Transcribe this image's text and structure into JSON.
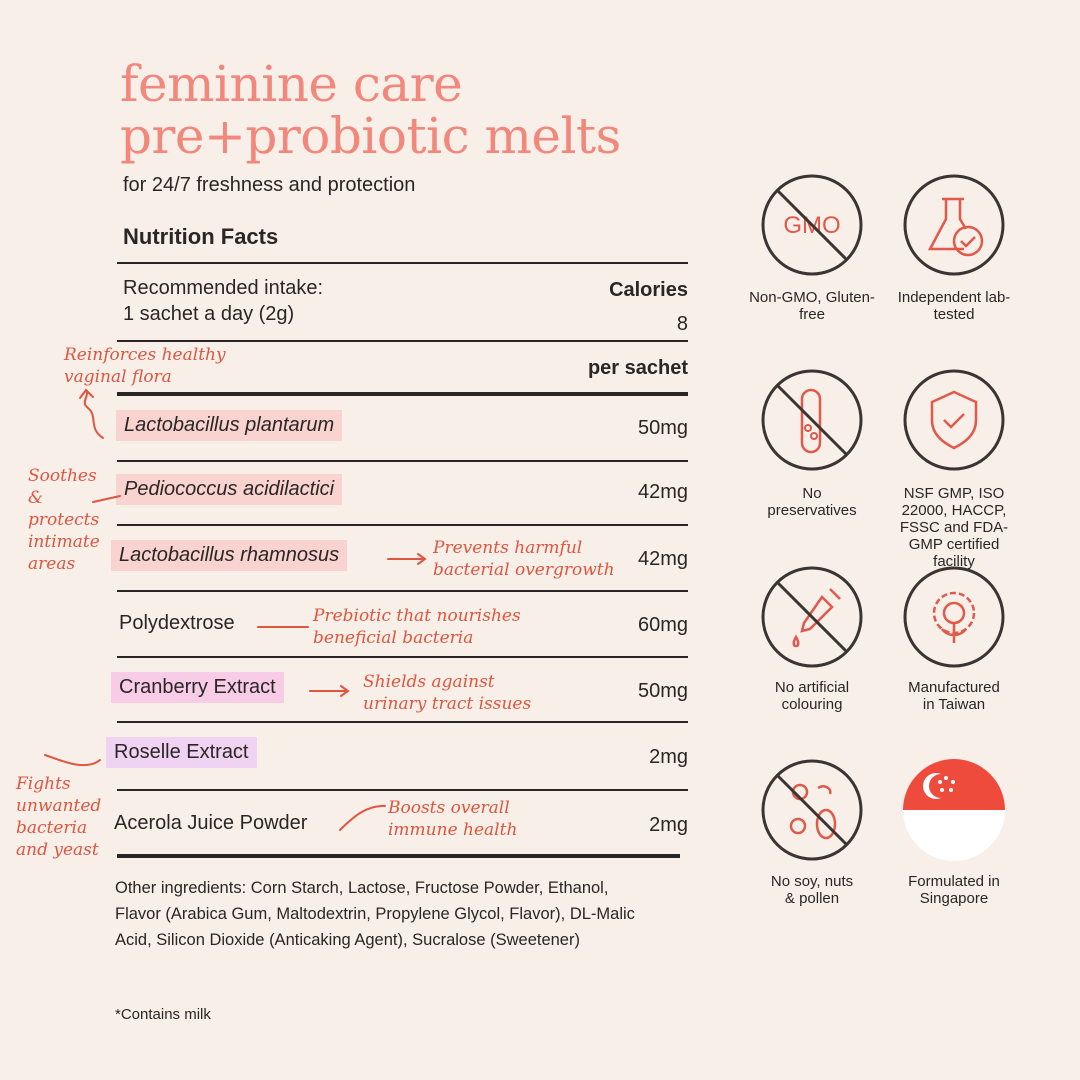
{
  "title": [
    "feminine care",
    "pre+probiotic melts"
  ],
  "subtitle": "for 24/7 freshness and protection",
  "nutrition_facts": "Nutrition Facts",
  "intake_label": "Recommended intake:",
  "intake_value": "1  sachet a day (2g)",
  "calories_label": "Calories",
  "calories_value": "8",
  "per_sachet": "per sachet",
  "rows": [
    {
      "name": "Lactobacillus plantarum",
      "amount": "50mg",
      "highlight": "#f9d3d0"
    },
    {
      "name": "Pediococcus acidilactici",
      "amount": "42mg",
      "highlight": "#f9d3d0"
    },
    {
      "name": "Lactobacillus rhamnosus",
      "amount": "42mg",
      "highlight": "#f9d3d0"
    },
    {
      "name": "Polydextrose",
      "amount": "60mg",
      "highlight": ""
    },
    {
      "name": "Cranberry Extract",
      "amount": "50mg",
      "highlight": "#f8cce6"
    },
    {
      "name": "Roselle Extract",
      "amount": "2mg",
      "highlight": "#f0d3f2"
    },
    {
      "name": "Acerola Juice Powder",
      "amount": "2mg",
      "highlight": ""
    }
  ],
  "notes": {
    "plantarum": "Reinforces healthy vaginal flora",
    "pediococcus": "Soothes & protects intimate areas",
    "rhamnosus": "Prevents harmful bacterial overgrowth",
    "polydextrose": "Prebiotic that nourishes beneficial bacteria",
    "cranberry": "Shields against urinary tract issues",
    "roselle": "Fights unwanted bacteria and yeast",
    "acerola": "Boosts overall immune health"
  },
  "other_ingredients": "Other ingredients: Corn Starch, Lactose, Fructose Powder, Ethanol, Flavor (Arabica Gum, Maltodextrin, Propylene Glycol, Flavor), DL-Malic Acid, Silicon Dioxide (Anticaking Agent), Sucralose (Sweetener)",
  "contains": "*Contains milk",
  "badges": [
    {
      "icon": "no-gmo-icon",
      "label": "Non-GMO, Gluten-free",
      "icon_text": "GMO"
    },
    {
      "icon": "lab-flask-icon",
      "label": "Independent lab-tested"
    },
    {
      "icon": "no-preservatives-icon",
      "label": "No preservatives"
    },
    {
      "icon": "shield-check-icon",
      "label": "NSF GMP, ISO 22000, HACCP, FSSC and FDA-GMP certified facility"
    },
    {
      "icon": "no-artificial-colouring-icon",
      "label": "No artificial colouring"
    },
    {
      "icon": "gear-plant-icon",
      "label": "Manufactured in Taiwan"
    },
    {
      "icon": "no-allergens-icon",
      "label": "No soy, nuts & pollen"
    },
    {
      "icon": "singapore-flag-icon",
      "label": "Formulated in Singapore"
    }
  ],
  "colors": {
    "accent": "#f2877c",
    "note": "#e0553f",
    "background": "#f8efe8"
  }
}
